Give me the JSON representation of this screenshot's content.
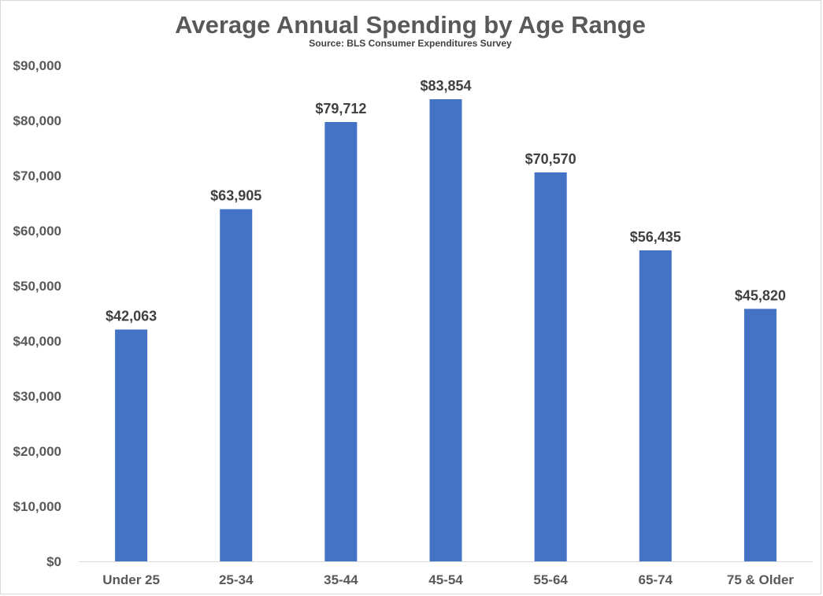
{
  "chart_data": {
    "type": "bar",
    "title": "Average Annual Spending by Age Range",
    "subtitle": "Source: BLS Consumer Expenditures Survey",
    "categories": [
      "Under 25",
      "25-34",
      "35-44",
      "45-54",
      "55-64",
      "65-74",
      "75 & Older"
    ],
    "values": [
      42063,
      63905,
      79712,
      83854,
      70570,
      56435,
      45820
    ],
    "value_labels": [
      "$42,063",
      "$63,905",
      "$79,712",
      "$83,854",
      "$70,570",
      "$56,435",
      "$45,820"
    ],
    "y_ticks": [
      0,
      10000,
      20000,
      30000,
      40000,
      50000,
      60000,
      70000,
      80000,
      90000
    ],
    "y_tick_labels": [
      "$0",
      "$10,000",
      "$20,000",
      "$30,000",
      "$40,000",
      "$50,000",
      "$60,000",
      "$70,000",
      "$80,000",
      "$90,000"
    ],
    "ylim": [
      0,
      90000
    ],
    "xlabel": "",
    "ylabel": "",
    "grid": false,
    "legend": "none",
    "bar_color": "#4472C4"
  }
}
